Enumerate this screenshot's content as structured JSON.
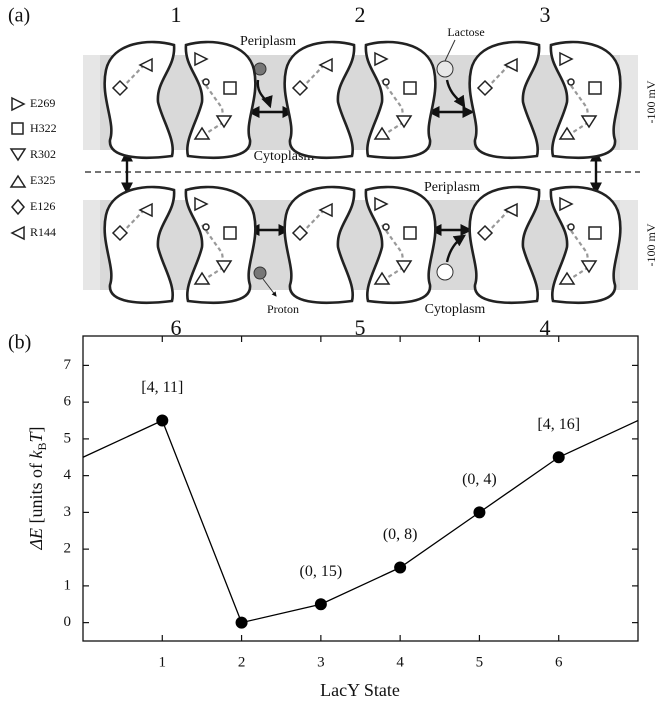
{
  "panel_a": {
    "label": "(a)",
    "states_top": [
      "1",
      "2",
      "3"
    ],
    "states_bottom": [
      "6",
      "5",
      "4"
    ],
    "periplasm": [
      "Periplasm",
      "Periplasm"
    ],
    "cytoplasm": [
      "Cytoplasm",
      "Cytoplasm"
    ],
    "lactose": "Lactose",
    "proton": "Proton",
    "voltage": [
      "-100 mV",
      "-100 mV"
    ],
    "legend": [
      "E269",
      "H322",
      "R302",
      "E325",
      "E126",
      "R144"
    ]
  },
  "chart_data": {
    "type": "line",
    "panel_label": "(b)",
    "xlabel": "LacY State",
    "ylabel": [
      "ΔE",
      " [units of ",
      "k",
      "B",
      "T",
      "]"
    ],
    "x": [
      0,
      1,
      2,
      3,
      4,
      5,
      6,
      7
    ],
    "values": [
      4.5,
      5.5,
      0,
      0.5,
      1.5,
      3,
      4.5,
      5.5
    ],
    "markers": [
      false,
      true,
      true,
      true,
      true,
      true,
      true,
      false
    ],
    "color": "#000000",
    "xlim": [
      0,
      7
    ],
    "ylim": [
      -0.5,
      7.8
    ],
    "xticks": [
      1,
      2,
      3,
      4,
      5,
      6
    ],
    "yticks": [
      0,
      1,
      2,
      3,
      4,
      5,
      6,
      7
    ],
    "annotations": [
      {
        "text": "[4, 11]",
        "x": 1
      },
      {
        "text": "(0, 15)",
        "x": 3
      },
      {
        "text": "(0, 8)",
        "x": 4
      },
      {
        "text": "(0, 4)",
        "x": 5
      },
      {
        "text": "[4, 16]",
        "x": 6
      }
    ]
  }
}
